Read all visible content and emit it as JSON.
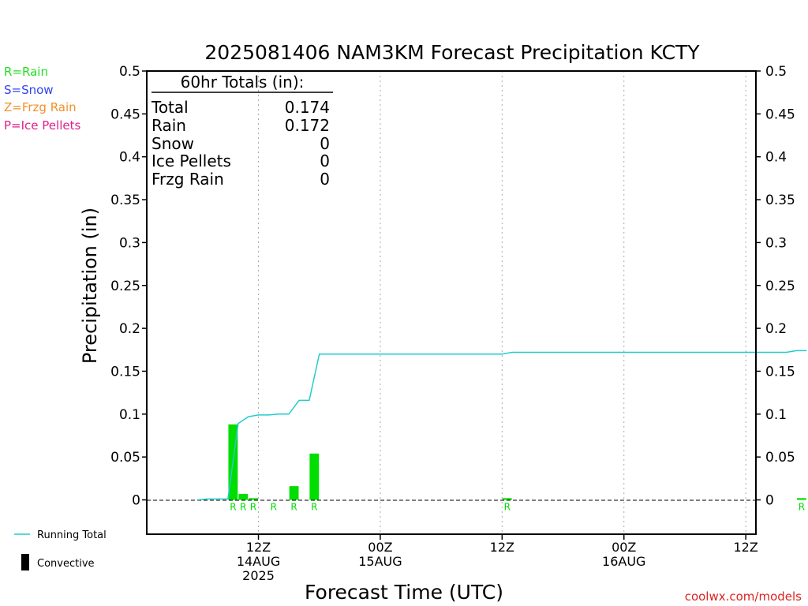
{
  "title": "2025081406 NAM3KM Forecast Precipitation KCTY",
  "legend_types": [
    {
      "text": "R=Rain",
      "color": "#22dd22"
    },
    {
      "text": "S=Snow",
      "color": "#3344ee"
    },
    {
      "text": "Z=Frzg Rain",
      "color": "#f0902a"
    },
    {
      "text": "P=Ice Pellets",
      "color": "#e0208a"
    }
  ],
  "legend_lines": {
    "running_total": "Running Total",
    "convective": "Convective"
  },
  "watermark": "coolwx.com/models",
  "totals": {
    "header": "60hr Totals (in):",
    "rows": [
      {
        "label": "Total",
        "value": "0.174"
      },
      {
        "label": "Rain",
        "value": "0.172"
      },
      {
        "label": "Snow",
        "value": "0"
      },
      {
        "label": "Ice Pellets",
        "value": "0"
      },
      {
        "label": "Frzg Rain",
        "value": "0"
      }
    ]
  },
  "colors": {
    "rain_bar": "#00dd00",
    "running_total_line": "#22cccc",
    "axis": "#000000",
    "grid": "#aaaaaa"
  },
  "chart_data": {
    "type": "bar",
    "title": "2025081406 NAM3KM Forecast Precipitation KCTY",
    "xlabel": "Forecast Time (UTC)",
    "ylabel": "Precipitation (in)",
    "ylim": [
      -0.04,
      0.5
    ],
    "yticks": [
      0,
      0.05,
      0.1,
      0.15,
      0.2,
      0.25,
      0.3,
      0.35,
      0.4,
      0.45,
      0.5
    ],
    "xlim_hours": [
      -5.0,
      55.0
    ],
    "xticks": [
      {
        "hour": 6,
        "lines": [
          "12Z",
          "14AUG",
          "2025"
        ]
      },
      {
        "hour": 18,
        "lines": [
          "00Z",
          "15AUG"
        ]
      },
      {
        "hour": 30,
        "lines": [
          "12Z"
        ]
      },
      {
        "hour": 42,
        "lines": [
          "00Z",
          "16AUG"
        ]
      },
      {
        "hour": 54,
        "lines": [
          "12Z"
        ]
      }
    ],
    "grid": "vertical dotted at tick times",
    "bars": [
      {
        "hour": 4,
        "value": 0.088,
        "label": "R"
      },
      {
        "hour": 5,
        "value": 0.007,
        "label": "R"
      },
      {
        "hour": 6,
        "value": 0.002,
        "label": "R"
      },
      {
        "hour": 8,
        "value": 0.0,
        "label": "R"
      },
      {
        "hour": 10,
        "value": 0.016,
        "label": "R"
      },
      {
        "hour": 12,
        "value": 0.054,
        "label": "R"
      },
      {
        "hour": 31,
        "value": 0.002,
        "label": "R"
      },
      {
        "hour": 60,
        "value": 0.002,
        "label": "R"
      }
    ],
    "running_total": {
      "name": "Running Total",
      "hours": [
        0,
        1,
        2,
        3,
        4,
        5,
        6,
        7,
        8,
        9,
        10,
        11,
        12,
        13,
        30,
        31,
        58,
        59,
        60
      ],
      "values": [
        0,
        0.001,
        0.001,
        0.001,
        0.089,
        0.097,
        0.099,
        0.099,
        0.1,
        0.1,
        0.116,
        0.116,
        0.17,
        0.17,
        0.17,
        0.172,
        0.172,
        0.174,
        0.174
      ]
    }
  }
}
